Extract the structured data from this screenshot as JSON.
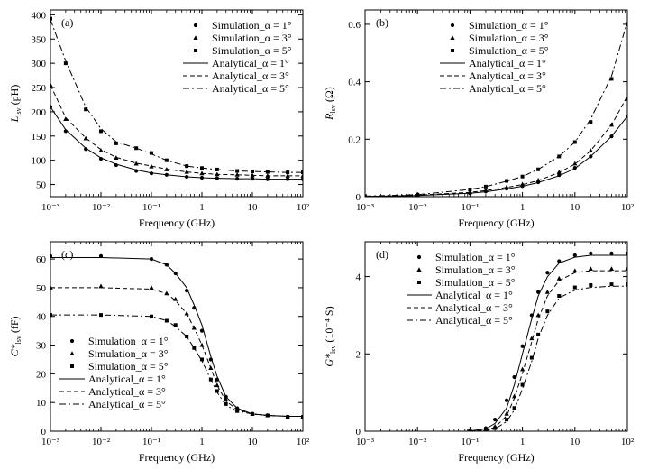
{
  "figure": {
    "x_axis_label": "Frequency (GHz)",
    "x_tick_labels": [
      "10⁻³",
      "10⁻²",
      "10⁻¹",
      "1",
      "10",
      "10²"
    ]
  },
  "chart_data": [
    {
      "type": "line",
      "panel_label": "(a)",
      "xscale": "log",
      "xlabel": "Frequency (GHz)",
      "ylabel": {
        "main": "L",
        "sub": "lsv",
        "unit": " (pH)"
      },
      "xlim": [
        0.001,
        100
      ],
      "ylim": [
        25,
        410
      ],
      "yticks": [
        50,
        100,
        150,
        200,
        250,
        300,
        350,
        400
      ],
      "legend_position": "top-right",
      "x": [
        0.001,
        0.002,
        0.005,
        0.01,
        0.02,
        0.05,
        0.1,
        0.2,
        0.5,
        1,
        2,
        5,
        10,
        20,
        50,
        100
      ],
      "series": [
        {
          "name": "Simulation_α = 1°",
          "kind": "scatter",
          "marker": "circle",
          "values": [
            210,
            160,
            123,
            103,
            90,
            78,
            73,
            70,
            66,
            64,
            63,
            62,
            62,
            61,
            61,
            61
          ]
        },
        {
          "name": "Simulation_α = 3°",
          "kind": "scatter",
          "marker": "triangle",
          "values": [
            255,
            185,
            145,
            120,
            105,
            93,
            87,
            81,
            76,
            73,
            71,
            70,
            69,
            68,
            68,
            68
          ]
        },
        {
          "name": "Simulation_α = 5°",
          "kind": "scatter",
          "marker": "square",
          "values": [
            392,
            300,
            205,
            160,
            135,
            125,
            115,
            100,
            88,
            84,
            81,
            78,
            77,
            76,
            75,
            75
          ]
        },
        {
          "name": "Analytical_α = 1°",
          "kind": "line",
          "dash": "solid",
          "values": [
            210,
            163,
            125,
            105,
            92,
            80,
            74,
            70,
            66,
            64,
            63,
            62,
            62,
            61,
            61,
            61
          ]
        },
        {
          "name": "Analytical_α = 3°",
          "kind": "line",
          "dash": "dash",
          "values": [
            255,
            188,
            146,
            122,
            106,
            94,
            88,
            82,
            76,
            73,
            71,
            70,
            69,
            68,
            68,
            68
          ]
        },
        {
          "name": "Analytical_α = 5°",
          "kind": "line",
          "dash": "dashdot",
          "values": [
            390,
            305,
            210,
            165,
            138,
            125,
            113,
            100,
            88,
            84,
            81,
            78,
            77,
            76,
            75,
            75
          ]
        }
      ]
    },
    {
      "type": "line",
      "panel_label": "(b)",
      "xscale": "log",
      "xlabel": "Frequency (GHz)",
      "ylabel": {
        "main": "R",
        "sub": "lsv",
        "unit": " (Ω)"
      },
      "xlim": [
        0.001,
        100
      ],
      "ylim": [
        0,
        0.65
      ],
      "yticks": [
        0,
        0.2,
        0.4,
        0.6
      ],
      "legend_position": "top-right",
      "x": [
        0.001,
        0.01,
        0.1,
        0.2,
        0.5,
        1,
        2,
        5,
        10,
        20,
        50,
        100
      ],
      "series": [
        {
          "name": "Simulation_α = 1°",
          "kind": "scatter",
          "marker": "circle",
          "values": [
            0.001,
            0.004,
            0.012,
            0.018,
            0.028,
            0.037,
            0.05,
            0.075,
            0.1,
            0.14,
            0.21,
            0.28
          ]
        },
        {
          "name": "Simulation_α = 3°",
          "kind": "scatter",
          "marker": "triangle",
          "values": [
            0.001,
            0.005,
            0.015,
            0.022,
            0.033,
            0.043,
            0.057,
            0.085,
            0.115,
            0.16,
            0.25,
            0.34
          ]
        },
        {
          "name": "Simulation_α = 5°",
          "kind": "scatter",
          "marker": "square",
          "values": [
            0.002,
            0.007,
            0.025,
            0.035,
            0.055,
            0.07,
            0.095,
            0.14,
            0.19,
            0.26,
            0.41,
            0.6
          ]
        },
        {
          "name": "Analytical_α = 1°",
          "kind": "line",
          "dash": "solid",
          "values": [
            0.001,
            0.004,
            0.012,
            0.017,
            0.027,
            0.036,
            0.049,
            0.073,
            0.098,
            0.14,
            0.21,
            0.28
          ]
        },
        {
          "name": "Analytical_α = 3°",
          "kind": "line",
          "dash": "dash",
          "values": [
            0.001,
            0.005,
            0.015,
            0.021,
            0.032,
            0.042,
            0.056,
            0.084,
            0.113,
            0.16,
            0.25,
            0.35
          ]
        },
        {
          "name": "Analytical_α = 5°",
          "kind": "line",
          "dash": "dashdot",
          "values": [
            0.002,
            0.007,
            0.025,
            0.035,
            0.054,
            0.07,
            0.095,
            0.14,
            0.19,
            0.27,
            0.42,
            0.61
          ]
        }
      ]
    },
    {
      "type": "line",
      "panel_label": "(c)",
      "xscale": "log",
      "xlabel": "Frequency (GHz)",
      "ylabel": {
        "main": "C*",
        "sub": "lsv",
        "unit": " (fF)"
      },
      "xlim": [
        0.001,
        100
      ],
      "ylim": [
        0,
        66
      ],
      "yticks": [
        0,
        10,
        20,
        30,
        40,
        50,
        60
      ],
      "legend_position": "bottom-left",
      "x": [
        0.001,
        0.01,
        0.1,
        0.2,
        0.3,
        0.5,
        0.7,
        1,
        1.5,
        2,
        3,
        5,
        10,
        20,
        50,
        100
      ],
      "series": [
        {
          "name": "Simulation_α = 1°",
          "kind": "scatter",
          "marker": "circle",
          "values": [
            61,
            61,
            60,
            58,
            55,
            49,
            43,
            35,
            25,
            18,
            12,
            8,
            6,
            5.5,
            5,
            5
          ]
        },
        {
          "name": "Simulation_α = 3°",
          "kind": "scatter",
          "marker": "triangle",
          "values": [
            50,
            50.5,
            50,
            48,
            46,
            41,
            36,
            30,
            22,
            16,
            11,
            7.5,
            6,
            5.5,
            5,
            5
          ]
        },
        {
          "name": "Simulation_α = 5°",
          "kind": "scatter",
          "marker": "square",
          "values": [
            40.5,
            40.5,
            40,
            38.5,
            37,
            33,
            29,
            25,
            18,
            14,
            9.5,
            7,
            6,
            5.5,
            5,
            5
          ]
        },
        {
          "name": "Analytical_α = 1°",
          "kind": "line",
          "dash": "solid",
          "values": [
            60.5,
            60.5,
            60,
            58,
            55,
            50,
            44,
            37,
            26,
            19,
            12,
            8,
            6,
            5.5,
            5.2,
            5.2
          ]
        },
        {
          "name": "Analytical_α = 3°",
          "kind": "line",
          "dash": "dash",
          "values": [
            50,
            50,
            49.5,
            48,
            45.5,
            41,
            36,
            30,
            22,
            16,
            10.5,
            7.5,
            6,
            5.5,
            5.2,
            5.2
          ]
        },
        {
          "name": "Analytical_α = 5°",
          "kind": "line",
          "dash": "dashdot",
          "values": [
            40.5,
            40.5,
            40,
            38.5,
            36.5,
            33,
            29,
            24.5,
            18,
            13.5,
            9,
            7,
            6,
            5.5,
            5.2,
            5.2
          ]
        }
      ]
    },
    {
      "type": "line",
      "panel_label": "(d)",
      "xscale": "log",
      "xlabel": "Frequency (GHz)",
      "ylabel": {
        "main": "G*",
        "sub": "lsv",
        "unit": " (10⁻⁴ S)"
      },
      "xlim": [
        0.001,
        100
      ],
      "ylim": [
        0,
        4.9
      ],
      "yticks": [
        0,
        2,
        4
      ],
      "legend_position": "top-left",
      "x": [
        0.1,
        0.2,
        0.3,
        0.5,
        0.7,
        1,
        1.5,
        2,
        3,
        5,
        10,
        20,
        50,
        100
      ],
      "series": [
        {
          "name": "Simulation_α = 1°",
          "kind": "scatter",
          "marker": "circle",
          "values": [
            0.02,
            0.08,
            0.3,
            0.8,
            1.4,
            2.2,
            3.0,
            3.6,
            4.1,
            4.4,
            4.55,
            4.6,
            4.6,
            4.6
          ]
        },
        {
          "name": "Simulation_α = 3°",
          "kind": "scatter",
          "marker": "triangle",
          "values": [
            0.01,
            0.04,
            0.12,
            0.45,
            0.9,
            1.6,
            2.4,
            3.0,
            3.6,
            3.95,
            4.15,
            4.2,
            4.2,
            4.2
          ]
        },
        {
          "name": "Simulation_α = 5°",
          "kind": "scatter",
          "marker": "square",
          "values": [
            0.005,
            0.02,
            0.08,
            0.3,
            0.6,
            1.2,
            1.9,
            2.5,
            3.1,
            3.5,
            3.72,
            3.78,
            3.8,
            3.8
          ]
        },
        {
          "name": "Analytical_α = 1°",
          "kind": "line",
          "dash": "solid",
          "values": [
            0.01,
            0.06,
            0.2,
            0.6,
            1.2,
            2.0,
            2.9,
            3.5,
            4.0,
            4.35,
            4.5,
            4.55,
            4.55,
            4.55
          ]
        },
        {
          "name": "Analytical_α = 3°",
          "kind": "line",
          "dash": "dash",
          "values": [
            0.005,
            0.03,
            0.1,
            0.4,
            0.85,
            1.5,
            2.3,
            2.9,
            3.5,
            3.9,
            4.1,
            4.15,
            4.15,
            4.15
          ]
        },
        {
          "name": "Analytical_α = 5°",
          "kind": "line",
          "dash": "dashdot",
          "values": [
            0.003,
            0.015,
            0.06,
            0.25,
            0.55,
            1.1,
            1.8,
            2.4,
            3.0,
            3.45,
            3.65,
            3.72,
            3.75,
            3.75
          ]
        }
      ]
    }
  ]
}
